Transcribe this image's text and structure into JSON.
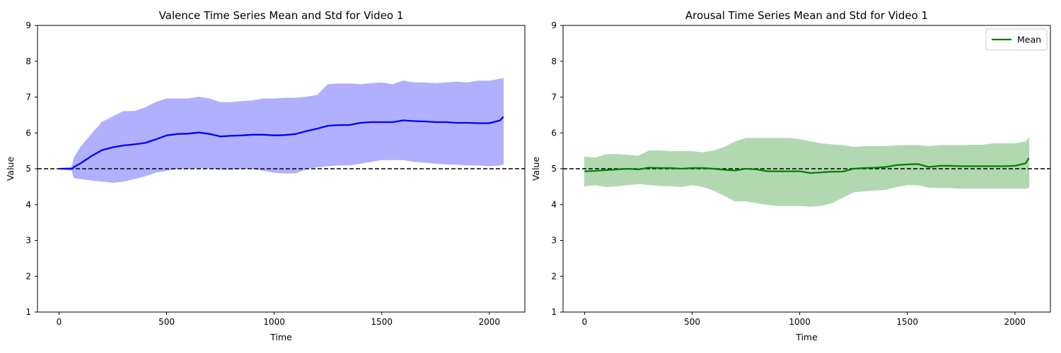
{
  "chart_data": [
    {
      "type": "line",
      "title": "Valence Time Series Mean and Std for Video 1",
      "xlabel": "Time",
      "ylabel": "Value",
      "xlim": [
        -100,
        2165
      ],
      "ylim": [
        1,
        9
      ],
      "xticks": [
        0,
        500,
        1000,
        1500,
        2000
      ],
      "yticks": [
        1,
        2,
        3,
        4,
        5,
        6,
        7,
        8,
        9
      ],
      "reference_line": 5,
      "legend": null,
      "grid": false,
      "colors": {
        "line": "#0000ff",
        "band": "#b0b0ff"
      },
      "series": [
        {
          "x": [
            0,
            60,
            70,
            100,
            150,
            200,
            250,
            300,
            350,
            400,
            450,
            500,
            550,
            600,
            650,
            700,
            750,
            800,
            850,
            900,
            950,
            1000,
            1050,
            1100,
            1150,
            1200,
            1250,
            1300,
            1350,
            1400,
            1450,
            1500,
            1550,
            1600,
            1650,
            1700,
            1750,
            1800,
            1850,
            1900,
            1950,
            2000,
            2050,
            2065
          ],
          "mean": [
            5.0,
            5.0,
            5.05,
            5.15,
            5.35,
            5.52,
            5.6,
            5.65,
            5.68,
            5.72,
            5.82,
            5.93,
            5.97,
            5.98,
            6.01,
            5.97,
            5.9,
            5.92,
            5.93,
            5.95,
            5.95,
            5.93,
            5.94,
            5.97,
            6.05,
            6.12,
            6.2,
            6.22,
            6.22,
            6.28,
            6.3,
            6.3,
            6.3,
            6.35,
            6.33,
            6.32,
            6.3,
            6.3,
            6.28,
            6.28,
            6.27,
            6.27,
            6.35,
            6.45
          ],
          "upper": [
            5.0,
            5.05,
            5.3,
            5.6,
            5.95,
            6.3,
            6.45,
            6.6,
            6.6,
            6.7,
            6.85,
            6.95,
            6.95,
            6.95,
            7.0,
            6.95,
            6.85,
            6.85,
            6.88,
            6.9,
            6.95,
            6.95,
            6.97,
            6.97,
            7.0,
            7.05,
            7.35,
            7.37,
            7.37,
            7.35,
            7.38,
            7.4,
            7.35,
            7.45,
            7.4,
            7.4,
            7.38,
            7.4,
            7.42,
            7.4,
            7.45,
            7.45,
            7.5,
            7.52
          ],
          "lower": [
            5.0,
            4.95,
            4.75,
            4.72,
            4.68,
            4.65,
            4.62,
            4.65,
            4.72,
            4.8,
            4.9,
            4.95,
            5.0,
            5.0,
            5.02,
            5.02,
            4.98,
            4.98,
            5.0,
            5.0,
            4.95,
            4.9,
            4.88,
            4.88,
            5.0,
            5.05,
            5.08,
            5.1,
            5.1,
            5.15,
            5.2,
            5.25,
            5.25,
            5.25,
            5.2,
            5.18,
            5.15,
            5.13,
            5.12,
            5.1,
            5.1,
            5.08,
            5.1,
            5.12
          ]
        }
      ]
    },
    {
      "type": "line",
      "title": "Arousal Time Series Mean and Std for Video 1",
      "xlabel": "Time",
      "ylabel": "Value",
      "xlim": [
        -100,
        2165
      ],
      "ylim": [
        1,
        9
      ],
      "xticks": [
        0,
        500,
        1000,
        1500,
        2000
      ],
      "yticks": [
        1,
        2,
        3,
        4,
        5,
        6,
        7,
        8,
        9
      ],
      "reference_line": 5,
      "legend": "top-right",
      "grid": false,
      "colors": {
        "line": "#008000",
        "band": "#b2d8b2"
      },
      "series": [
        {
          "name": "Mean",
          "x": [
            0,
            50,
            100,
            150,
            200,
            250,
            300,
            350,
            400,
            450,
            500,
            550,
            600,
            650,
            700,
            750,
            800,
            850,
            900,
            950,
            1000,
            1050,
            1100,
            1150,
            1200,
            1250,
            1300,
            1350,
            1400,
            1450,
            1500,
            1550,
            1600,
            1650,
            1700,
            1750,
            1800,
            1850,
            1900,
            1950,
            2000,
            2050,
            2065
          ],
          "mean": [
            4.93,
            4.94,
            4.96,
            4.98,
            5.0,
            4.98,
            5.03,
            5.02,
            5.02,
            5.0,
            5.02,
            5.02,
            5.0,
            4.97,
            4.95,
            5.0,
            4.98,
            4.93,
            4.93,
            4.93,
            4.93,
            4.88,
            4.9,
            4.92,
            4.92,
            5.0,
            5.02,
            5.03,
            5.05,
            5.1,
            5.12,
            5.13,
            5.05,
            5.08,
            5.08,
            5.07,
            5.07,
            5.07,
            5.07,
            5.07,
            5.08,
            5.15,
            5.3
          ],
          "upper": [
            5.33,
            5.3,
            5.4,
            5.4,
            5.38,
            5.35,
            5.5,
            5.5,
            5.48,
            5.48,
            5.48,
            5.45,
            5.5,
            5.6,
            5.75,
            5.85,
            5.85,
            5.85,
            5.85,
            5.85,
            5.82,
            5.75,
            5.7,
            5.67,
            5.65,
            5.6,
            5.62,
            5.62,
            5.62,
            5.64,
            5.65,
            5.65,
            5.62,
            5.65,
            5.65,
            5.65,
            5.66,
            5.66,
            5.7,
            5.7,
            5.7,
            5.75,
            5.85
          ],
          "lower": [
            4.52,
            4.55,
            4.5,
            4.52,
            4.55,
            4.58,
            4.55,
            4.53,
            4.52,
            4.5,
            4.55,
            4.5,
            4.4,
            4.25,
            4.1,
            4.1,
            4.05,
            4.0,
            3.97,
            3.97,
            3.97,
            3.95,
            3.97,
            4.05,
            4.2,
            4.35,
            4.38,
            4.4,
            4.42,
            4.5,
            4.55,
            4.55,
            4.48,
            4.47,
            4.47,
            4.45,
            4.45,
            4.45,
            4.45,
            4.45,
            4.45,
            4.45,
            4.48
          ]
        }
      ]
    }
  ]
}
